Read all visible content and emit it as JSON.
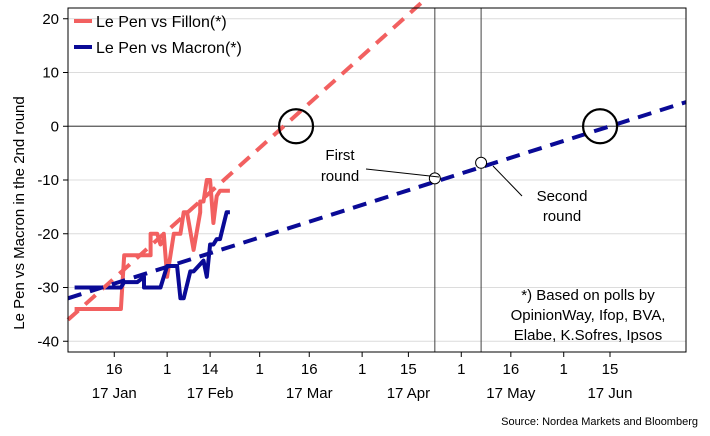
{
  "chart_data": {
    "type": "line",
    "ylabel": "Le Pen vs Macron in the 2nd round",
    "ylim": [
      -42,
      22
    ],
    "y_ticks": [
      20,
      10,
      0,
      -10,
      -20,
      -30,
      -40
    ],
    "xlim": [
      "2017-01-02",
      "2017-07-08"
    ],
    "x_ticks": [
      {
        "date": "2017-01-16",
        "label": "16"
      },
      {
        "date": "2017-02-01",
        "label": "1"
      },
      {
        "date": "2017-02-14",
        "label": "14"
      },
      {
        "date": "2017-03-01",
        "label": "1"
      },
      {
        "date": "2017-03-16",
        "label": "16"
      },
      {
        "date": "2017-04-01",
        "label": "1"
      },
      {
        "date": "2017-04-15",
        "label": "15"
      },
      {
        "date": "2017-05-01",
        "label": "1"
      },
      {
        "date": "2017-05-16",
        "label": "16"
      },
      {
        "date": "2017-06-01",
        "label": "1"
      },
      {
        "date": "2017-06-15",
        "label": "15"
      }
    ],
    "month_labels": [
      {
        "date": "2017-01-16",
        "label": "17 Jan"
      },
      {
        "date": "2017-02-14",
        "label": "17 Feb"
      },
      {
        "date": "2017-03-16",
        "label": "17 Mar"
      },
      {
        "date": "2017-04-15",
        "label": "17 Apr"
      },
      {
        "date": "2017-05-16",
        "label": "17 May"
      },
      {
        "date": "2017-06-15",
        "label": "17 Jun"
      }
    ],
    "vlines": [
      "2017-04-23",
      "2017-05-07"
    ],
    "legend": "top-left",
    "grid": true,
    "series": [
      {
        "name": "Le Pen vs Fillon(*)",
        "color": "#f26060",
        "x": [
          "2017-01-04",
          "2017-01-18",
          "2017-01-19",
          "2017-01-27",
          "2017-01-27",
          "2017-01-29",
          "2017-01-30",
          "2017-01-31",
          "2017-01-31",
          "2017-02-01",
          "2017-02-03",
          "2017-02-05",
          "2017-02-06",
          "2017-02-07",
          "2017-02-09",
          "2017-02-11",
          "2017-02-11",
          "2017-02-12",
          "2017-02-13",
          "2017-02-14",
          "2017-02-15",
          "2017-02-16",
          "2017-02-17",
          "2017-02-19",
          "2017-02-20"
        ],
        "y": [
          -34,
          -34,
          -24,
          -24,
          -20,
          -20,
          -22,
          -21,
          -20,
          -28,
          -20,
          -20,
          -16,
          -16,
          -23,
          -16,
          -14,
          -14,
          -10,
          -10,
          -18,
          -13,
          -12,
          -12,
          -12
        ]
      },
      {
        "name": "Le Pen vs Macron(*)",
        "color": "#0a0a96",
        "x": [
          "2017-01-04",
          "2017-01-18",
          "2017-01-19",
          "2017-01-23",
          "2017-01-25",
          "2017-01-25",
          "2017-01-29",
          "2017-01-30",
          "2017-02-01",
          "2017-02-04",
          "2017-02-05",
          "2017-02-06",
          "2017-02-08",
          "2017-02-09",
          "2017-02-12",
          "2017-02-13",
          "2017-02-14",
          "2017-02-15",
          "2017-02-16",
          "2017-02-17",
          "2017-02-19",
          "2017-02-20"
        ],
        "y": [
          -30,
          -30,
          -29,
          -29,
          -28,
          -30,
          -30,
          -30,
          -26,
          -26,
          -32,
          -32,
          -27,
          -27,
          -25,
          -28,
          -22,
          -22,
          -21,
          -21,
          -16,
          -16
        ]
      },
      {
        "name": "",
        "color": "#f26060",
        "dashed": true,
        "x": [
          "2017-01-02",
          "2017-04-19"
        ],
        "y": [
          -36,
          23
        ]
      },
      {
        "name": "",
        "color": "#0a0a96",
        "dashed": true,
        "x": [
          "2017-01-02",
          "2017-07-08"
        ],
        "y": [
          -32,
          4.5
        ]
      }
    ],
    "markers": [
      {
        "x": "2017-04-23",
        "y": -9.7
      },
      {
        "x": "2017-05-07",
        "y": -6.8
      }
    ],
    "circles": [
      {
        "x": "2017-03-12",
        "y": 0
      },
      {
        "x": "2017-06-12",
        "y": 0
      }
    ],
    "annotations": {
      "first_round": [
        "First",
        "round"
      ],
      "second_round": [
        "Second",
        "round"
      ],
      "note": [
        "*) Based on polls by",
        "OpinionWay, Ifop, BVA,",
        "Elabe, K.Sofres, Ipsos"
      ]
    },
    "source": "Source: Nordea Markets and Bloomberg"
  }
}
